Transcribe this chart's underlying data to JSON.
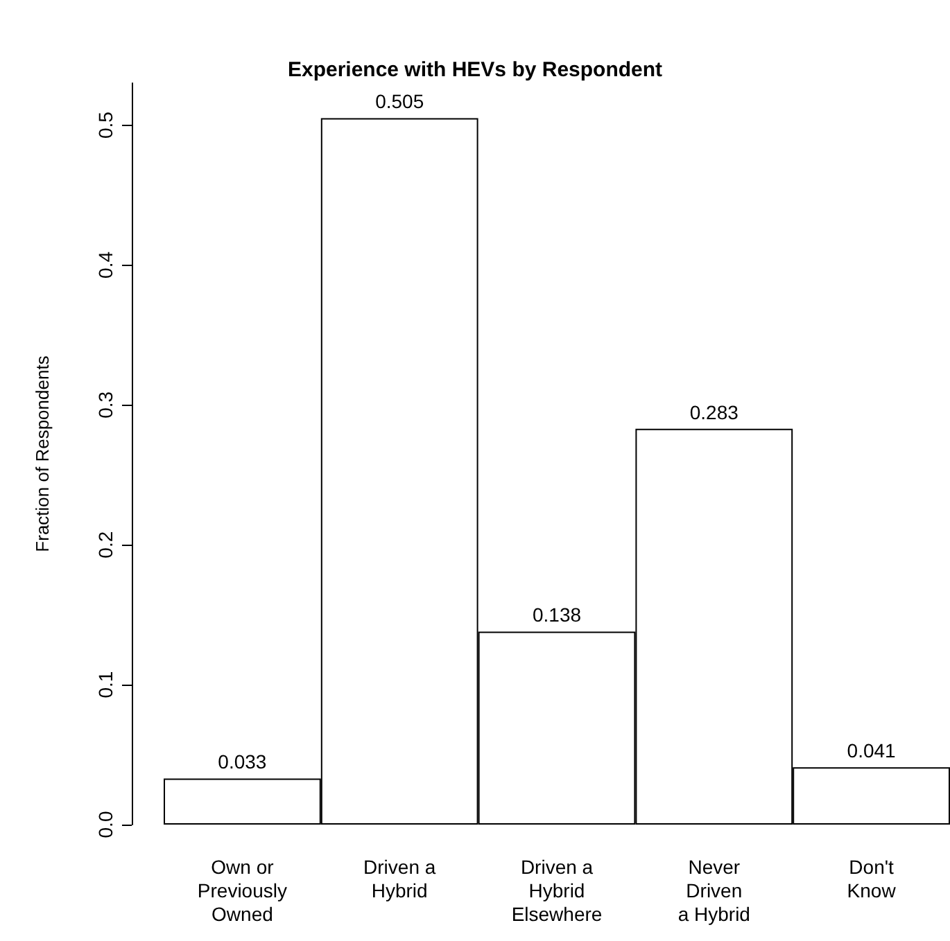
{
  "chart_data": {
    "type": "bar",
    "title": "Experience with HEVs by Respondent",
    "ylabel": "Fraction of Respondents",
    "categories": [
      "Own or\nPreviously\nOwned",
      "Driven a\nHybrid",
      "Driven a\nHybrid\nElsewhere",
      "Never\nDriven\na Hybrid",
      "Don't\nKnow"
    ],
    "values": [
      0.033,
      0.505,
      0.138,
      0.283,
      0.041
    ],
    "color": "#ffffff",
    "ylim": [
      0,
      0.53
    ],
    "yticks": [
      {
        "value": 0,
        "label": "0.0"
      },
      {
        "value": 0.1,
        "label": "0.1"
      },
      {
        "value": 0.2,
        "label": "0.2"
      },
      {
        "value": 0.3,
        "label": "0.3"
      },
      {
        "value": 0.4,
        "label": "0.4"
      },
      {
        "value": 0.5,
        "label": "0.5"
      }
    ],
    "data_labels": true
  }
}
